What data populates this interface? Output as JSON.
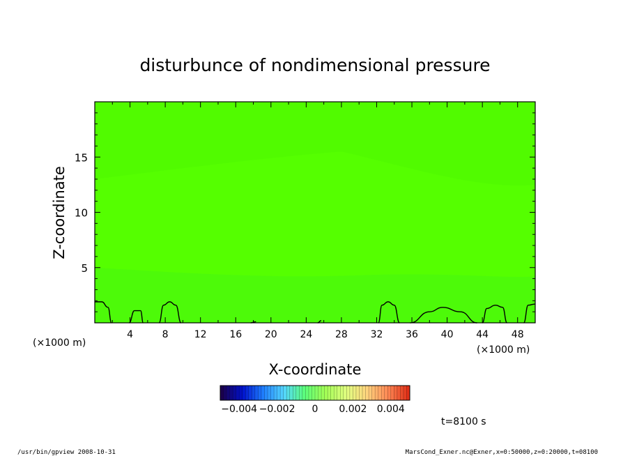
{
  "chart_data": {
    "type": "heatmap",
    "title": "disturbunce of nondimensional pressure",
    "xlabel": "X-coordinate",
    "ylabel": "Z-coordinate",
    "x_units": "(×1000 m)",
    "y_units": "(×1000 m)",
    "xlim": [
      0,
      50
    ],
    "ylim": [
      0,
      20
    ],
    "x_ticks": [
      4,
      8,
      12,
      16,
      20,
      24,
      28,
      32,
      36,
      40,
      44,
      48
    ],
    "y_ticks": [
      5,
      10,
      15
    ],
    "x_tick_labels": [
      "4",
      "8",
      "12",
      "16",
      "20",
      "24",
      "28",
      "32",
      "36",
      "40",
      "44",
      "48"
    ],
    "y_tick_labels": [
      "5",
      "10",
      "15"
    ],
    "field_value_approx": 0.0,
    "field_color": "#55ff00",
    "contour_lines": [
      {
        "x": [
          0,
          0.8,
          1.5,
          1.9
        ],
        "z": [
          1.9,
          1.9,
          1.4,
          0
        ]
      },
      {
        "x": [
          3.9,
          4.5,
          5.2,
          5.5
        ],
        "z": [
          0,
          1.1,
          1.1,
          0
        ]
      },
      {
        "x": [
          7.3,
          7.8,
          8.5,
          9.2,
          9.8
        ],
        "z": [
          0,
          1.6,
          1.9,
          1.6,
          0
        ]
      },
      {
        "x": [
          17.7,
          18.3
        ],
        "z": [
          0,
          0.1
        ]
      },
      {
        "x": [
          25.3,
          25.7
        ],
        "z": [
          0,
          0.2
        ]
      },
      {
        "x": [
          32.2,
          32.6,
          33.3,
          34.0,
          34.6
        ],
        "z": [
          0,
          1.6,
          1.9,
          1.6,
          0
        ]
      },
      {
        "x": [
          35.8,
          38.0,
          39.5,
          41.5,
          43.4
        ],
        "z": [
          0,
          1.0,
          1.4,
          1.0,
          0
        ]
      },
      {
        "x": [
          44.0,
          44.5,
          45.5,
          46.3,
          46.8
        ],
        "z": [
          0,
          1.3,
          1.6,
          1.4,
          0
        ]
      },
      {
        "x": [
          48.7,
          49.2,
          50
        ],
        "z": [
          0,
          1.6,
          1.7
        ]
      }
    ],
    "colorbar": {
      "min": -0.005,
      "max": 0.005,
      "tick_labels": [
        "−0.004",
        "−0.002",
        "0",
        "0.002",
        "0.004"
      ],
      "tick_values": [
        -0.004,
        -0.002,
        0,
        0.002,
        0.004
      ],
      "colors": [
        "#1a004d",
        "#0011cc",
        "#1f7fff",
        "#55d6ff",
        "#5cff7a",
        "#a3ff55",
        "#e0ff80",
        "#ffd47f",
        "#ff8a55",
        "#e03018"
      ]
    },
    "annotations": {
      "time": "t=8100 s",
      "footer_left": "/usr/bin/gpview   2008-10-31",
      "footer_right": "MarsCond_Exner.nc@Exner,x=0:50000,z=0:20000,t=08100"
    }
  }
}
